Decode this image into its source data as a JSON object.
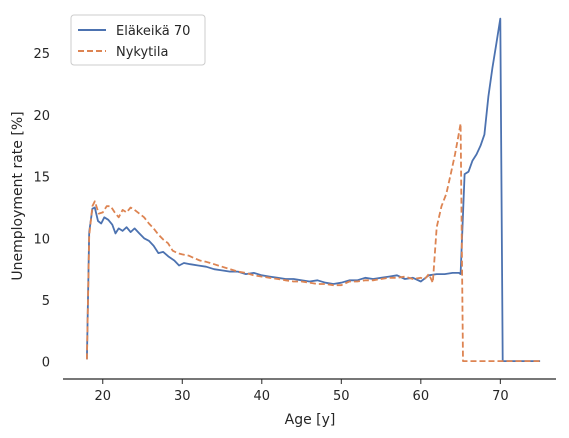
{
  "chart_data": {
    "type": "line",
    "title": "",
    "xlabel": "Age [y]",
    "ylabel": "Unemployment rate [%]",
    "xlim": [
      15,
      77
    ],
    "ylim": [
      -1.4,
      28.5
    ],
    "xticks": [
      20,
      30,
      40,
      50,
      60,
      70
    ],
    "yticks": [
      0,
      5,
      10,
      15,
      20,
      25
    ],
    "grid": false,
    "legend_position": "top-left",
    "series": [
      {
        "name": "Eläkeikä 70",
        "color": "#4c72b0",
        "dash": "solid",
        "points": [
          [
            18.0,
            0.2
          ],
          [
            18.3,
            10.5
          ],
          [
            18.7,
            12.4
          ],
          [
            19.0,
            12.5
          ],
          [
            19.4,
            11.4
          ],
          [
            19.8,
            11.2
          ],
          [
            20.2,
            11.7
          ],
          [
            20.7,
            11.5
          ],
          [
            21.2,
            11.1
          ],
          [
            21.6,
            10.4
          ],
          [
            22.0,
            10.8
          ],
          [
            22.5,
            10.6
          ],
          [
            23.0,
            10.9
          ],
          [
            23.5,
            10.5
          ],
          [
            24.0,
            10.8
          ],
          [
            24.6,
            10.4
          ],
          [
            25.2,
            10.0
          ],
          [
            25.8,
            9.8
          ],
          [
            26.4,
            9.4
          ],
          [
            27.0,
            8.8
          ],
          [
            27.6,
            8.9
          ],
          [
            28.3,
            8.5
          ],
          [
            29.0,
            8.2
          ],
          [
            29.6,
            7.8
          ],
          [
            30.2,
            8.0
          ],
          [
            31.0,
            7.9
          ],
          [
            32.0,
            7.8
          ],
          [
            33.0,
            7.7
          ],
          [
            34.0,
            7.5
          ],
          [
            35.0,
            7.4
          ],
          [
            36.0,
            7.3
          ],
          [
            37.0,
            7.3
          ],
          [
            38.0,
            7.1
          ],
          [
            39.0,
            7.2
          ],
          [
            40.0,
            7.0
          ],
          [
            41.0,
            6.9
          ],
          [
            42.0,
            6.8
          ],
          [
            43.0,
            6.7
          ],
          [
            44.0,
            6.7
          ],
          [
            45.0,
            6.6
          ],
          [
            46.0,
            6.5
          ],
          [
            47.0,
            6.6
          ],
          [
            48.0,
            6.4
          ],
          [
            49.0,
            6.3
          ],
          [
            50.0,
            6.4
          ],
          [
            51.0,
            6.6
          ],
          [
            52.0,
            6.6
          ],
          [
            53.0,
            6.8
          ],
          [
            54.0,
            6.7
          ],
          [
            55.0,
            6.8
          ],
          [
            56.0,
            6.9
          ],
          [
            57.0,
            7.0
          ],
          [
            58.0,
            6.7
          ],
          [
            59.0,
            6.8
          ],
          [
            60.0,
            6.5
          ],
          [
            61.0,
            7.0
          ],
          [
            62.0,
            7.1
          ],
          [
            63.0,
            7.1
          ],
          [
            64.0,
            7.2
          ],
          [
            64.8,
            7.2
          ],
          [
            65.0,
            7.1
          ],
          [
            65.5,
            15.2
          ],
          [
            66.0,
            15.4
          ],
          [
            66.5,
            16.3
          ],
          [
            67.0,
            16.8
          ],
          [
            67.5,
            17.5
          ],
          [
            68.0,
            18.4
          ],
          [
            68.5,
            21.5
          ],
          [
            69.0,
            23.8
          ],
          [
            69.5,
            25.8
          ],
          [
            70.0,
            27.8
          ],
          [
            70.3,
            0.05
          ],
          [
            71.0,
            0.05
          ],
          [
            73.0,
            0.05
          ],
          [
            75.0,
            0.05
          ]
        ]
      },
      {
        "name": "Nykytila",
        "color": "#dd8452",
        "dash": "dashed",
        "points": [
          [
            18.0,
            0.2
          ],
          [
            18.3,
            10.2
          ],
          [
            18.7,
            12.6
          ],
          [
            19.0,
            13.0
          ],
          [
            19.5,
            12.0
          ],
          [
            20.0,
            12.1
          ],
          [
            20.5,
            12.6
          ],
          [
            21.0,
            12.6
          ],
          [
            21.5,
            12.1
          ],
          [
            22.0,
            11.7
          ],
          [
            22.5,
            12.3
          ],
          [
            23.0,
            12.1
          ],
          [
            23.5,
            12.5
          ],
          [
            24.0,
            12.3
          ],
          [
            24.6,
            12.0
          ],
          [
            25.2,
            11.7
          ],
          [
            25.8,
            11.2
          ],
          [
            26.4,
            10.8
          ],
          [
            27.0,
            10.3
          ],
          [
            27.6,
            9.9
          ],
          [
            28.2,
            9.6
          ],
          [
            28.8,
            9.0
          ],
          [
            29.4,
            8.8
          ],
          [
            30.0,
            8.7
          ],
          [
            30.8,
            8.6
          ],
          [
            31.5,
            8.4
          ],
          [
            32.2,
            8.2
          ],
          [
            33.0,
            8.1
          ],
          [
            34.0,
            7.9
          ],
          [
            35.0,
            7.7
          ],
          [
            36.0,
            7.5
          ],
          [
            37.0,
            7.3
          ],
          [
            38.0,
            7.2
          ],
          [
            39.0,
            7.0
          ],
          [
            40.0,
            6.9
          ],
          [
            41.0,
            6.8
          ],
          [
            42.0,
            6.7
          ],
          [
            43.0,
            6.6
          ],
          [
            44.0,
            6.5
          ],
          [
            45.0,
            6.5
          ],
          [
            46.0,
            6.4
          ],
          [
            47.0,
            6.3
          ],
          [
            48.0,
            6.3
          ],
          [
            49.0,
            6.2
          ],
          [
            50.0,
            6.2
          ],
          [
            51.0,
            6.5
          ],
          [
            52.0,
            6.5
          ],
          [
            53.0,
            6.6
          ],
          [
            54.0,
            6.6
          ],
          [
            55.0,
            6.7
          ],
          [
            56.0,
            6.8
          ],
          [
            57.0,
            6.8
          ],
          [
            58.0,
            6.9
          ],
          [
            59.0,
            6.7
          ],
          [
            60.0,
            6.8
          ],
          [
            60.5,
            6.7
          ],
          [
            61.0,
            7.1
          ],
          [
            61.5,
            6.4
          ],
          [
            62.0,
            10.9
          ],
          [
            62.6,
            12.6
          ],
          [
            63.2,
            13.6
          ],
          [
            63.8,
            15.3
          ],
          [
            64.3,
            16.8
          ],
          [
            64.7,
            18.2
          ],
          [
            65.0,
            19.3
          ],
          [
            65.3,
            0.05
          ],
          [
            66.0,
            0.05
          ],
          [
            68.0,
            0.05
          ],
          [
            70.0,
            0.05
          ],
          [
            72.0,
            0.05
          ],
          [
            75.0,
            0.05
          ]
        ]
      }
    ]
  }
}
